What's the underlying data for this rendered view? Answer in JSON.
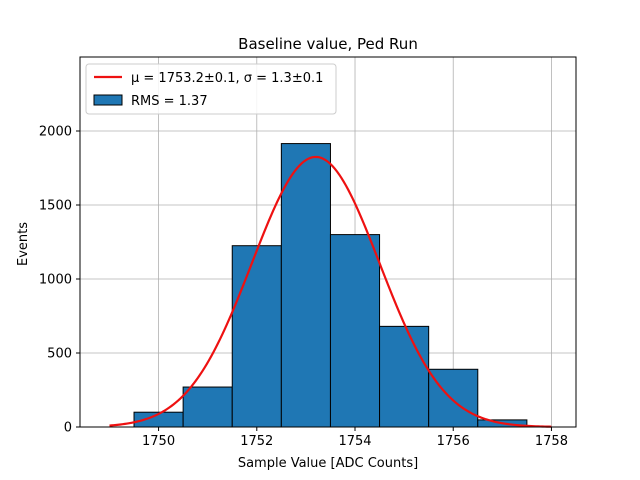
{
  "chart_data": {
    "type": "bar",
    "title": "Baseline value, Ped Run",
    "xlabel": "Sample Value [ADC Counts]",
    "ylabel": "Events",
    "xlim": [
      1748.4,
      1758.5
    ],
    "ylim": [
      0,
      2500
    ],
    "xticks": [
      1750,
      1752,
      1754,
      1756,
      1758
    ],
    "yticks": [
      0,
      500,
      1000,
      1500,
      2000
    ],
    "grid": true,
    "legend_position": "upper-left",
    "bins": [
      {
        "x0": 1748.5,
        "x1": 1749.5,
        "value": 0
      },
      {
        "x0": 1749.5,
        "x1": 1750.5,
        "value": 100
      },
      {
        "x0": 1750.5,
        "x1": 1751.5,
        "value": 270
      },
      {
        "x0": 1751.5,
        "x1": 1752.5,
        "value": 1225
      },
      {
        "x0": 1752.5,
        "x1": 1753.5,
        "value": 1915
      },
      {
        "x0": 1753.5,
        "x1": 1754.5,
        "value": 1300
      },
      {
        "x0": 1754.5,
        "x1": 1755.5,
        "value": 680
      },
      {
        "x0": 1755.5,
        "x1": 1756.5,
        "value": 390
      },
      {
        "x0": 1756.5,
        "x1": 1757.5,
        "value": 48
      }
    ],
    "fit": {
      "mu": 1753.2,
      "sigma": 1.3,
      "amplitude": 1825,
      "x_range": [
        1749,
        1758
      ]
    },
    "series": [
      {
        "name": "$\\mu = 1753.2{\\pm}0.1$, $\\sigma = 1.3{\\pm}0.1$",
        "label_display": "μ = 1753.2±0.1, σ = 1.3±0.1",
        "type": "line",
        "color": "#ee1111"
      },
      {
        "name": "RMS = 1.37",
        "type": "bar",
        "color": "#1f77b4"
      }
    ]
  }
}
